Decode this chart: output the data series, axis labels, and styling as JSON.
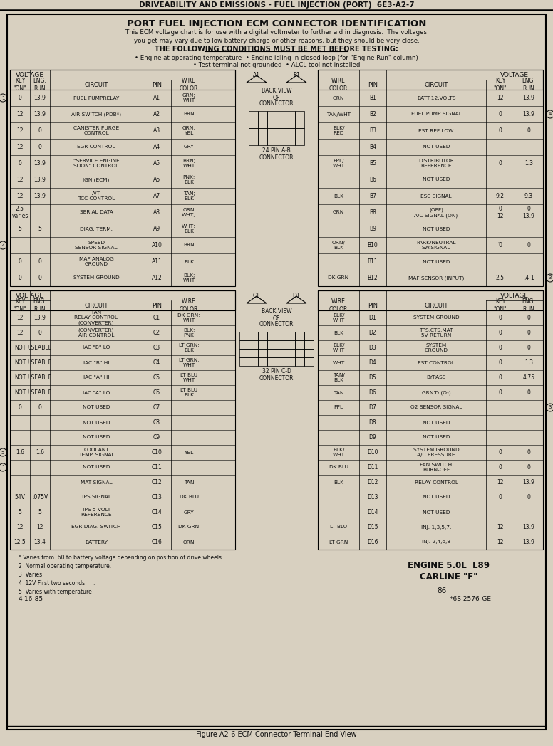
{
  "title_header": "DRIVEABILITY AND EMISSIONS - FUEL INJECTION (PORT)  6E3-A2-7",
  "main_title": "PORT FUEL INJECTION ECM CONNECTOR IDENTIFICATION",
  "subtitle1": "This ECM voltage chart is for use with a digital voltmeter to further aid in diagnosis.  The voltages",
  "subtitle2": "you get may vary due to low battery charge or other reasons, but they should be very close.",
  "conditions_title": "THE FOLLOWING CONDITIONS MUST BE MET BEFORE TESTING:",
  "conditions": [
    "• Engine at operating temperature  • Engine idling in closed loop (for \"Engine Run\" column)",
    "• Test terminal not grounded  • ALCL tool not installed"
  ],
  "left_rows_A": [
    [
      "0",
      "13.9",
      "FUEL PUMPRELAY",
      "A1",
      "GRN;\nWHT",
      "1"
    ],
    [
      "12",
      "13.9",
      "AIR SWITCH (PDB*)",
      "A2",
      "BRN",
      ""
    ],
    [
      "12",
      "0",
      "CANISTER PURGE\nCONTROL",
      "A3",
      "GRN;\nYEL",
      ""
    ],
    [
      "12",
      "0",
      "EGR CONTROL",
      "A4",
      "GRY",
      ""
    ],
    [
      "0",
      "13.9",
      "\"SERVICE ENGINE\nSOON\" CONTROL",
      "A5",
      "BRN;\nWHT",
      ""
    ],
    [
      "12",
      "13.9",
      "IGN (ECM)",
      "A6",
      "PNK;\nBLK",
      ""
    ],
    [
      "12",
      "13.9",
      "A/T\nTCC CONTROL",
      "A7",
      "TAN;\nBLK",
      ""
    ],
    [
      "2.5\nvaries",
      "",
      "SERIAL DATA",
      "A8",
      "ORN\nWHT;",
      ""
    ],
    [
      "5",
      "5",
      "DIAG. TERM.",
      "A9",
      "WHT;\nBLK",
      ""
    ],
    [
      "",
      "",
      "SPEED\nSENSOR SIGNAL",
      "A10",
      "BRN",
      "2"
    ],
    [
      "0",
      "0",
      "MAF ANALOG\nGROUND",
      "A11",
      "BLK",
      ""
    ],
    [
      "0",
      "0",
      "SYSTEM GROUND",
      "A12",
      "BLK;\nWHT",
      ""
    ]
  ],
  "left_rows_C": [
    [
      "12",
      "13.9",
      "FAN\nRELAY CONTROL\n(CONVERTER)",
      "C1",
      "DK GRN;\nWHT",
      ""
    ],
    [
      "12",
      "0",
      "(CONVERTER)\nAIR CONTROL",
      "C2",
      "BLK;\nPNK",
      ""
    ],
    [
      "NOT",
      "USEABLE",
      "IAC \"B\" LO",
      "C3",
      "LT GRN;\nBLK",
      ""
    ],
    [
      "NOT",
      "USEABLE",
      "IAC \"B\" HI",
      "C4",
      "LT GRN;\nWHT",
      ""
    ],
    [
      "NOT",
      "USEABLE",
      "IAC \"A\" HI",
      "C5",
      "LT BLU\nWHT",
      ""
    ],
    [
      "NOT",
      "USEABLE",
      "IAC \"A\" LO",
      "C6",
      "LT BLU\nBLK",
      ""
    ],
    [
      "0",
      "0",
      "NOT USED",
      "C7",
      "",
      ""
    ],
    [
      "",
      "",
      "NOT USED",
      "C8",
      "",
      ""
    ],
    [
      "",
      "",
      "NOT USED",
      "C9",
      "",
      ""
    ],
    [
      "1.6",
      "1.6",
      "COOLANT\nTEMP. SIGNAL",
      "C10",
      "YEL",
      "5"
    ],
    [
      "",
      "",
      "NOT USED",
      "C11",
      "",
      "1"
    ],
    [
      "",
      "",
      "MAT SIGNAL",
      "C12",
      "TAN",
      ""
    ],
    [
      "54V",
      ".075V",
      "TPS SIGNAL",
      "C13",
      "DK BLU",
      ""
    ],
    [
      "5",
      "5",
      "TPS 5 VOLT\nREFERENCE",
      "C14",
      "GRY",
      ""
    ],
    [
      "12",
      "12",
      "EGR DIAG. SWITCH",
      "C15",
      "DK GRN",
      ""
    ],
    [
      "12.5",
      "13.4",
      "BATTERY",
      "C16",
      "ORN",
      ""
    ]
  ],
  "right_rows_B": [
    [
      "ORN",
      "B1",
      "BATT.12.VOLTS",
      "12",
      "13.9",
      ""
    ],
    [
      "TAN/WHT",
      "B2",
      "FUEL PUMP SIGNAL",
      "0",
      "13.9",
      "4"
    ],
    [
      "BLK/\nRED",
      "B3",
      "EST REF LOW",
      "0",
      "0",
      ""
    ],
    [
      "",
      "B4",
      "NOT USED",
      "",
      "",
      ""
    ],
    [
      "PPL/\nWHT",
      "B5",
      "DISTRIBUTOR\nREFERENCE",
      "0",
      "1.3",
      ""
    ],
    [
      "",
      "B6",
      "NOT USED",
      "",
      "",
      ""
    ],
    [
      "BLK",
      "B7",
      "ESC SIGNAL",
      "9.2",
      "9.3",
      ""
    ],
    [
      "GRN",
      "B8",
      "(OFF)\nA/C SIGNAL (ON)",
      "0\n12",
      "0\n13.9",
      ""
    ],
    [
      "",
      "B9",
      "NOT USED",
      "",
      "",
      ""
    ],
    [
      "ORN/\nBLK",
      "B10",
      "PARK/NEUTRAL\nSW.SIGNAL",
      "'0",
      "0",
      ""
    ],
    [
      "",
      "B11",
      "NOT USED",
      "",
      "",
      ""
    ],
    [
      "DK GRN",
      "B12",
      "MAF SENSOR (INPUT)",
      "2.5",
      ".4-1",
      "3"
    ]
  ],
  "right_rows_D": [
    [
      "BLK/\nWHT",
      "D1",
      "SYSTEM GROUND",
      "0",
      "0",
      ""
    ],
    [
      "BLK",
      "D2",
      "TPS,CTS,MAT\n5V RETURN",
      "0",
      "0",
      ""
    ],
    [
      "BLK/\nWHT",
      "D3",
      "SYSTEM\nGROUND",
      "0",
      "0",
      ""
    ],
    [
      "WHT",
      "D4",
      "EST CONTROL",
      "0",
      "1.3",
      ""
    ],
    [
      "TAN/\nBLK",
      "D5",
      "BYPASS",
      "0",
      "4.75",
      ""
    ],
    [
      "TAN",
      "D6",
      "GRN'D (O₂)",
      "0",
      "0",
      ""
    ],
    [
      "PPL",
      "D7",
      "O2 SENSOR SIGNAL",
      "",
      "",
      "3"
    ],
    [
      "",
      "D8",
      "NOT USED",
      "",
      "",
      ""
    ],
    [
      "",
      "D9",
      "NOT USED",
      "",
      "",
      ""
    ],
    [
      "BLK/\nWHT",
      "D10",
      "SYSTEM GROUND\nA/C PRESSURE",
      "0",
      "0",
      ""
    ],
    [
      "DK BLU",
      "D11",
      "FAN SWITCH\nBURN-OFF",
      "0",
      "0",
      ""
    ],
    [
      "BLK",
      "D12",
      "RELAY CONTROL",
      "12",
      "13.9",
      ""
    ],
    [
      "",
      "D13",
      "NOT USED",
      "0",
      "0",
      ""
    ],
    [
      "",
      "D14",
      "NOT USED",
      "",
      "",
      ""
    ],
    [
      "LT BLU",
      "D15",
      "INJ. 1,3,5,7.",
      "12",
      "13.9",
      ""
    ],
    [
      "LT GRN",
      "D16",
      "INJ. 2,4,6,8",
      "12",
      "13.9",
      ""
    ]
  ],
  "footnotes": [
    "* Varies from .60 to battery voltage depending on position of drive wheels.",
    "2  Normal operating temperature.",
    "3  Varies",
    "4  12V First two seconds     .",
    "5  Varies with temperature"
  ],
  "engine_text": "ENGINE 5.0L  L89",
  "carline_text": "CARLINE \"F\"",
  "date_text": "86",
  "part_text": "*6S 2576-GE",
  "figure_caption": "Figure A2-6 ECM Connector Terminal End View",
  "page_ref": "4-16-85",
  "bg_color": "#d8d0c0",
  "paper_color": "#e8e0d0"
}
